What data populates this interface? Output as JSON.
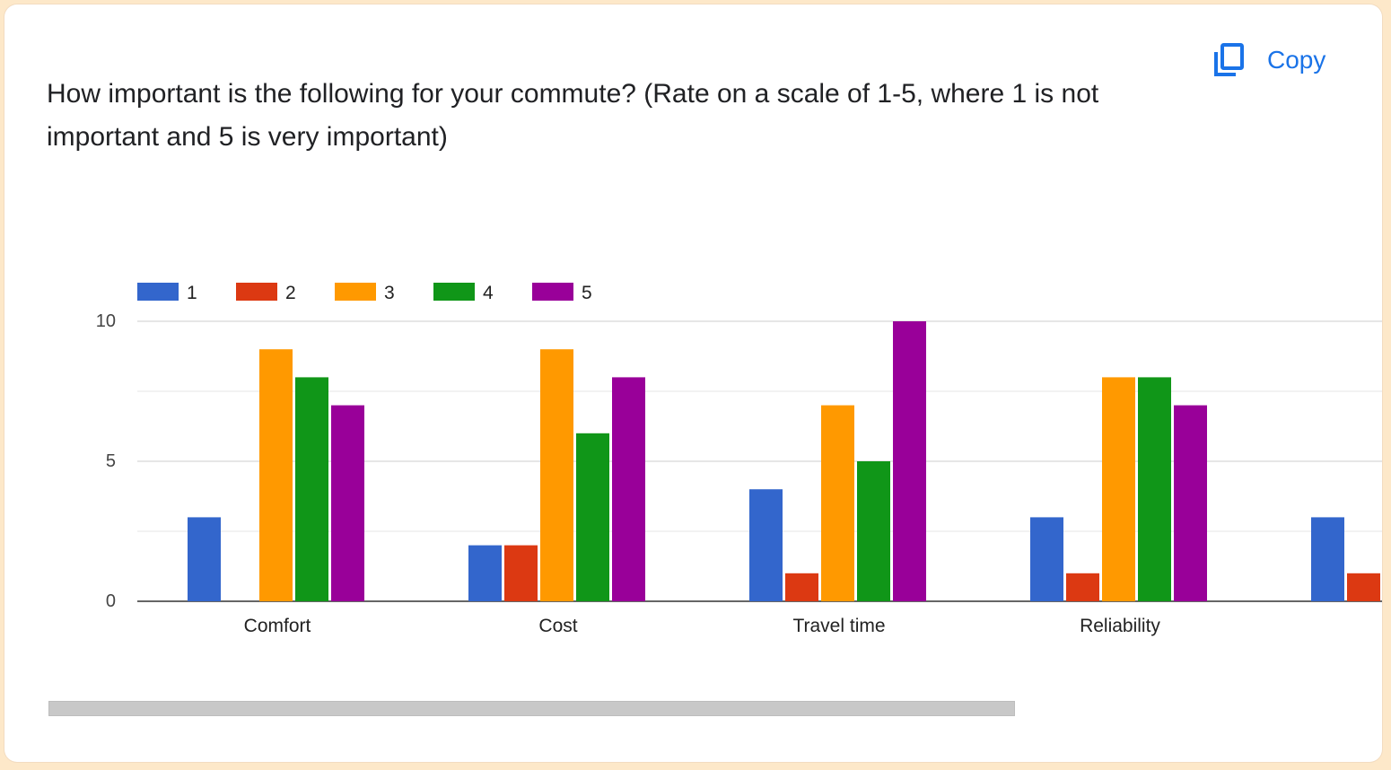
{
  "question": {
    "title": "How important is the following for your commute? (Rate on a scale of 1-5, where 1 is not important and 5 is very important)"
  },
  "copy_button": {
    "label": "Copy",
    "icon": "copy-icon"
  },
  "chart_data": {
    "type": "bar",
    "categories": [
      "Comfort",
      "Cost",
      "Travel time",
      "Reliability",
      ""
    ],
    "series": [
      {
        "name": "1",
        "color": "#3366cc",
        "values": [
          3,
          2,
          4,
          3,
          3
        ]
      },
      {
        "name": "2",
        "color": "#dc3912",
        "values": [
          0,
          2,
          1,
          1,
          1
        ]
      },
      {
        "name": "3",
        "color": "#ff9900",
        "values": [
          9,
          9,
          7,
          8,
          null
        ]
      },
      {
        "name": "4",
        "color": "#109618",
        "values": [
          8,
          6,
          5,
          8,
          null
        ]
      },
      {
        "name": "5",
        "color": "#990099",
        "values": [
          7,
          8,
          10,
          7,
          null
        ]
      }
    ],
    "ylim": [
      0,
      10
    ],
    "yticks": [
      "0",
      "5",
      "10"
    ],
    "legend_position": "top-left",
    "grid": true,
    "xlabel": "",
    "ylabel": ""
  }
}
